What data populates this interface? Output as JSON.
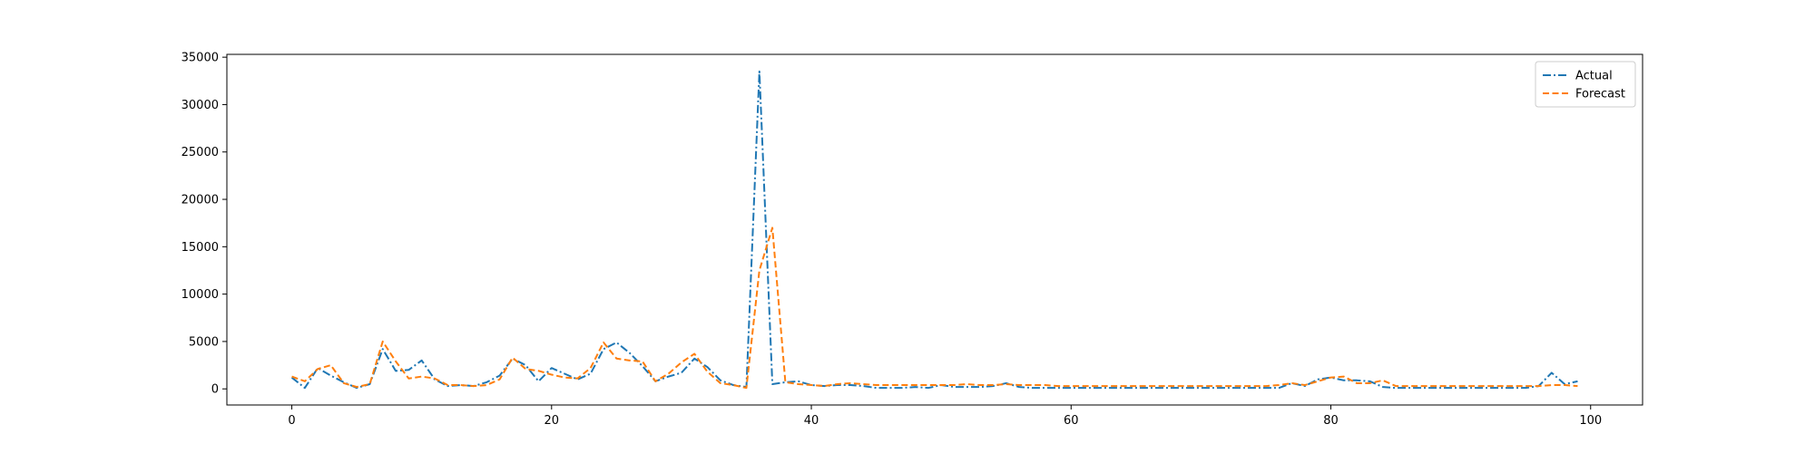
{
  "chart_data": {
    "type": "line",
    "xlim": [
      -5,
      104
    ],
    "ylim": [
      -1700,
      35300
    ],
    "xticks": [
      0,
      20,
      40,
      60,
      80,
      100
    ],
    "yticks": [
      0,
      5000,
      10000,
      15000,
      20000,
      25000,
      30000,
      35000
    ],
    "legend_position": "top-right",
    "grid": false,
    "series": [
      {
        "name": "Actual",
        "color": "#1f77b4",
        "dash": "dashdot",
        "values": [
          1200,
          100,
          2200,
          1400,
          700,
          100,
          500,
          4200,
          1900,
          2000,
          3000,
          1000,
          300,
          400,
          300,
          700,
          1400,
          3200,
          2500,
          800,
          2200,
          1600,
          1000,
          1600,
          4200,
          4900,
          3800,
          2400,
          800,
          1300,
          1700,
          3200,
          2300,
          900,
          400,
          200,
          33500,
          500,
          700,
          800,
          400,
          300,
          400,
          400,
          300,
          100,
          100,
          100,
          200,
          100,
          400,
          200,
          200,
          200,
          300,
          600,
          200,
          100,
          100,
          100,
          100,
          100,
          100,
          100,
          100,
          100,
          100,
          100,
          100,
          100,
          100,
          100,
          100,
          100,
          100,
          100,
          100,
          600,
          300,
          1000,
          1200,
          900,
          900,
          800,
          200,
          100,
          100,
          100,
          100,
          100,
          100,
          100,
          100,
          100,
          100,
          100,
          300,
          1700,
          500,
          800
        ]
      },
      {
        "name": "Forecast",
        "color": "#ff7f0e",
        "dash": "dashed",
        "values": [
          1300,
          800,
          2100,
          2500,
          600,
          200,
          500,
          5000,
          2900,
          1100,
          1300,
          1100,
          400,
          400,
          300,
          400,
          1000,
          3300,
          2100,
          1900,
          1500,
          1200,
          1100,
          2200,
          4900,
          3200,
          3000,
          2900,
          800,
          1600,
          2800,
          3700,
          1800,
          600,
          400,
          100,
          12500,
          17000,
          700,
          500,
          400,
          300,
          500,
          600,
          500,
          400,
          400,
          400,
          400,
          400,
          400,
          400,
          500,
          400,
          400,
          500,
          400,
          400,
          400,
          300,
          300,
          300,
          300,
          300,
          300,
          300,
          300,
          300,
          300,
          300,
          300,
          300,
          300,
          300,
          300,
          300,
          400,
          600,
          400,
          800,
          1200,
          1300,
          600,
          600,
          900,
          300,
          300,
          300,
          300,
          300,
          300,
          300,
          300,
          300,
          300,
          300,
          300,
          400,
          400,
          300
        ]
      }
    ]
  }
}
